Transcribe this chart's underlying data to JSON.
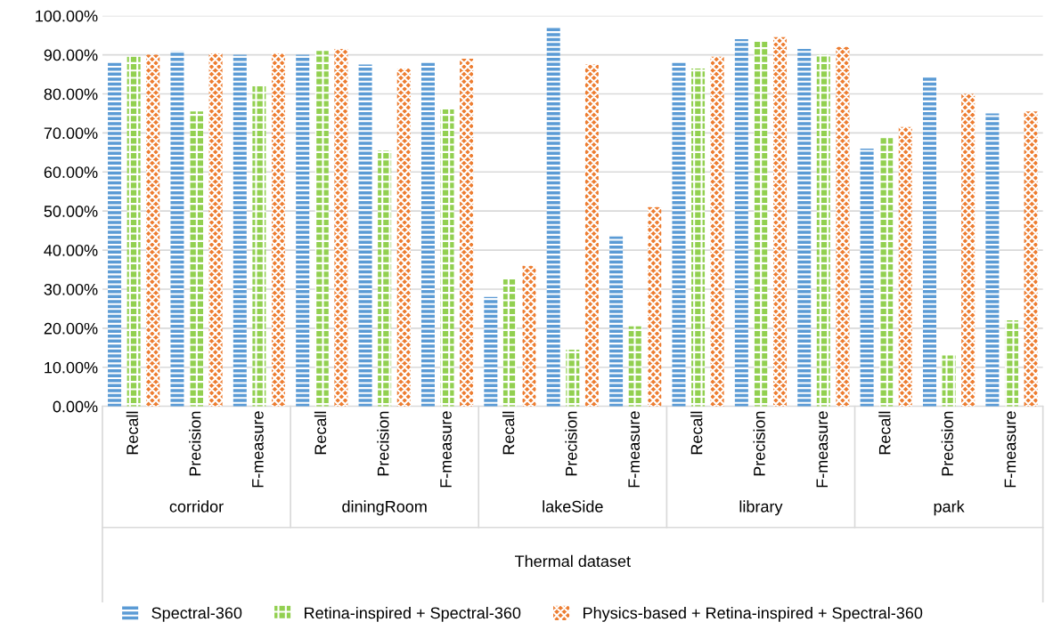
{
  "chart_data": {
    "type": "bar",
    "categories": [
      "Recall",
      "Precision",
      "F-measure",
      "Recall",
      "Precision",
      "F-measure",
      "Recall",
      "Precision",
      "F-measure",
      "Recall",
      "Precision",
      "F-measure",
      "Recall",
      "Precision",
      "F-measure"
    ],
    "annotations": [
      "corridor",
      "diningRoom",
      "lakeSide",
      "library",
      "park"
    ],
    "xlabel": "Thermal dataset",
    "series": [
      {
        "name": "Spectral-360",
        "color": "#5b9bd5",
        "values": [
          88,
          91,
          90,
          90,
          87.5,
          88,
          28,
          97,
          43.5,
          88,
          94,
          91.5,
          66,
          84.5,
          75
        ]
      },
      {
        "name": "Retina-inspired + Spectral-360",
        "color": "#92d050",
        "values": [
          89.5,
          75.5,
          82,
          91,
          65.5,
          76,
          32.5,
          14.5,
          20.5,
          86.5,
          93.5,
          90,
          69,
          13,
          22
        ]
      },
      {
        "name": "Physics-based + Retina-inspired + Spectral-360",
        "color": "#ed7d31",
        "values": [
          90,
          90.3,
          90.3,
          91.5,
          86.5,
          89,
          36,
          87.5,
          51,
          89.5,
          94.5,
          92,
          71.5,
          80,
          75.5
        ]
      }
    ],
    "ylim": [
      0,
      100
    ],
    "yticks": [
      {
        "value": 0,
        "label": "0.00%"
      },
      {
        "value": 10,
        "label": "10.00%"
      },
      {
        "value": 20,
        "label": "20.00%"
      },
      {
        "value": 30,
        "label": "30.00%"
      },
      {
        "value": 40,
        "label": "40.00%"
      },
      {
        "value": 50,
        "label": "50.00%"
      },
      {
        "value": 60,
        "label": "60.00%"
      },
      {
        "value": 70,
        "label": "70.00%"
      },
      {
        "value": 80,
        "label": "80.00%"
      },
      {
        "value": 90,
        "label": "90.00%"
      },
      {
        "value": 100,
        "label": "100.00%"
      }
    ],
    "grid": "y",
    "legend": "bottom"
  }
}
